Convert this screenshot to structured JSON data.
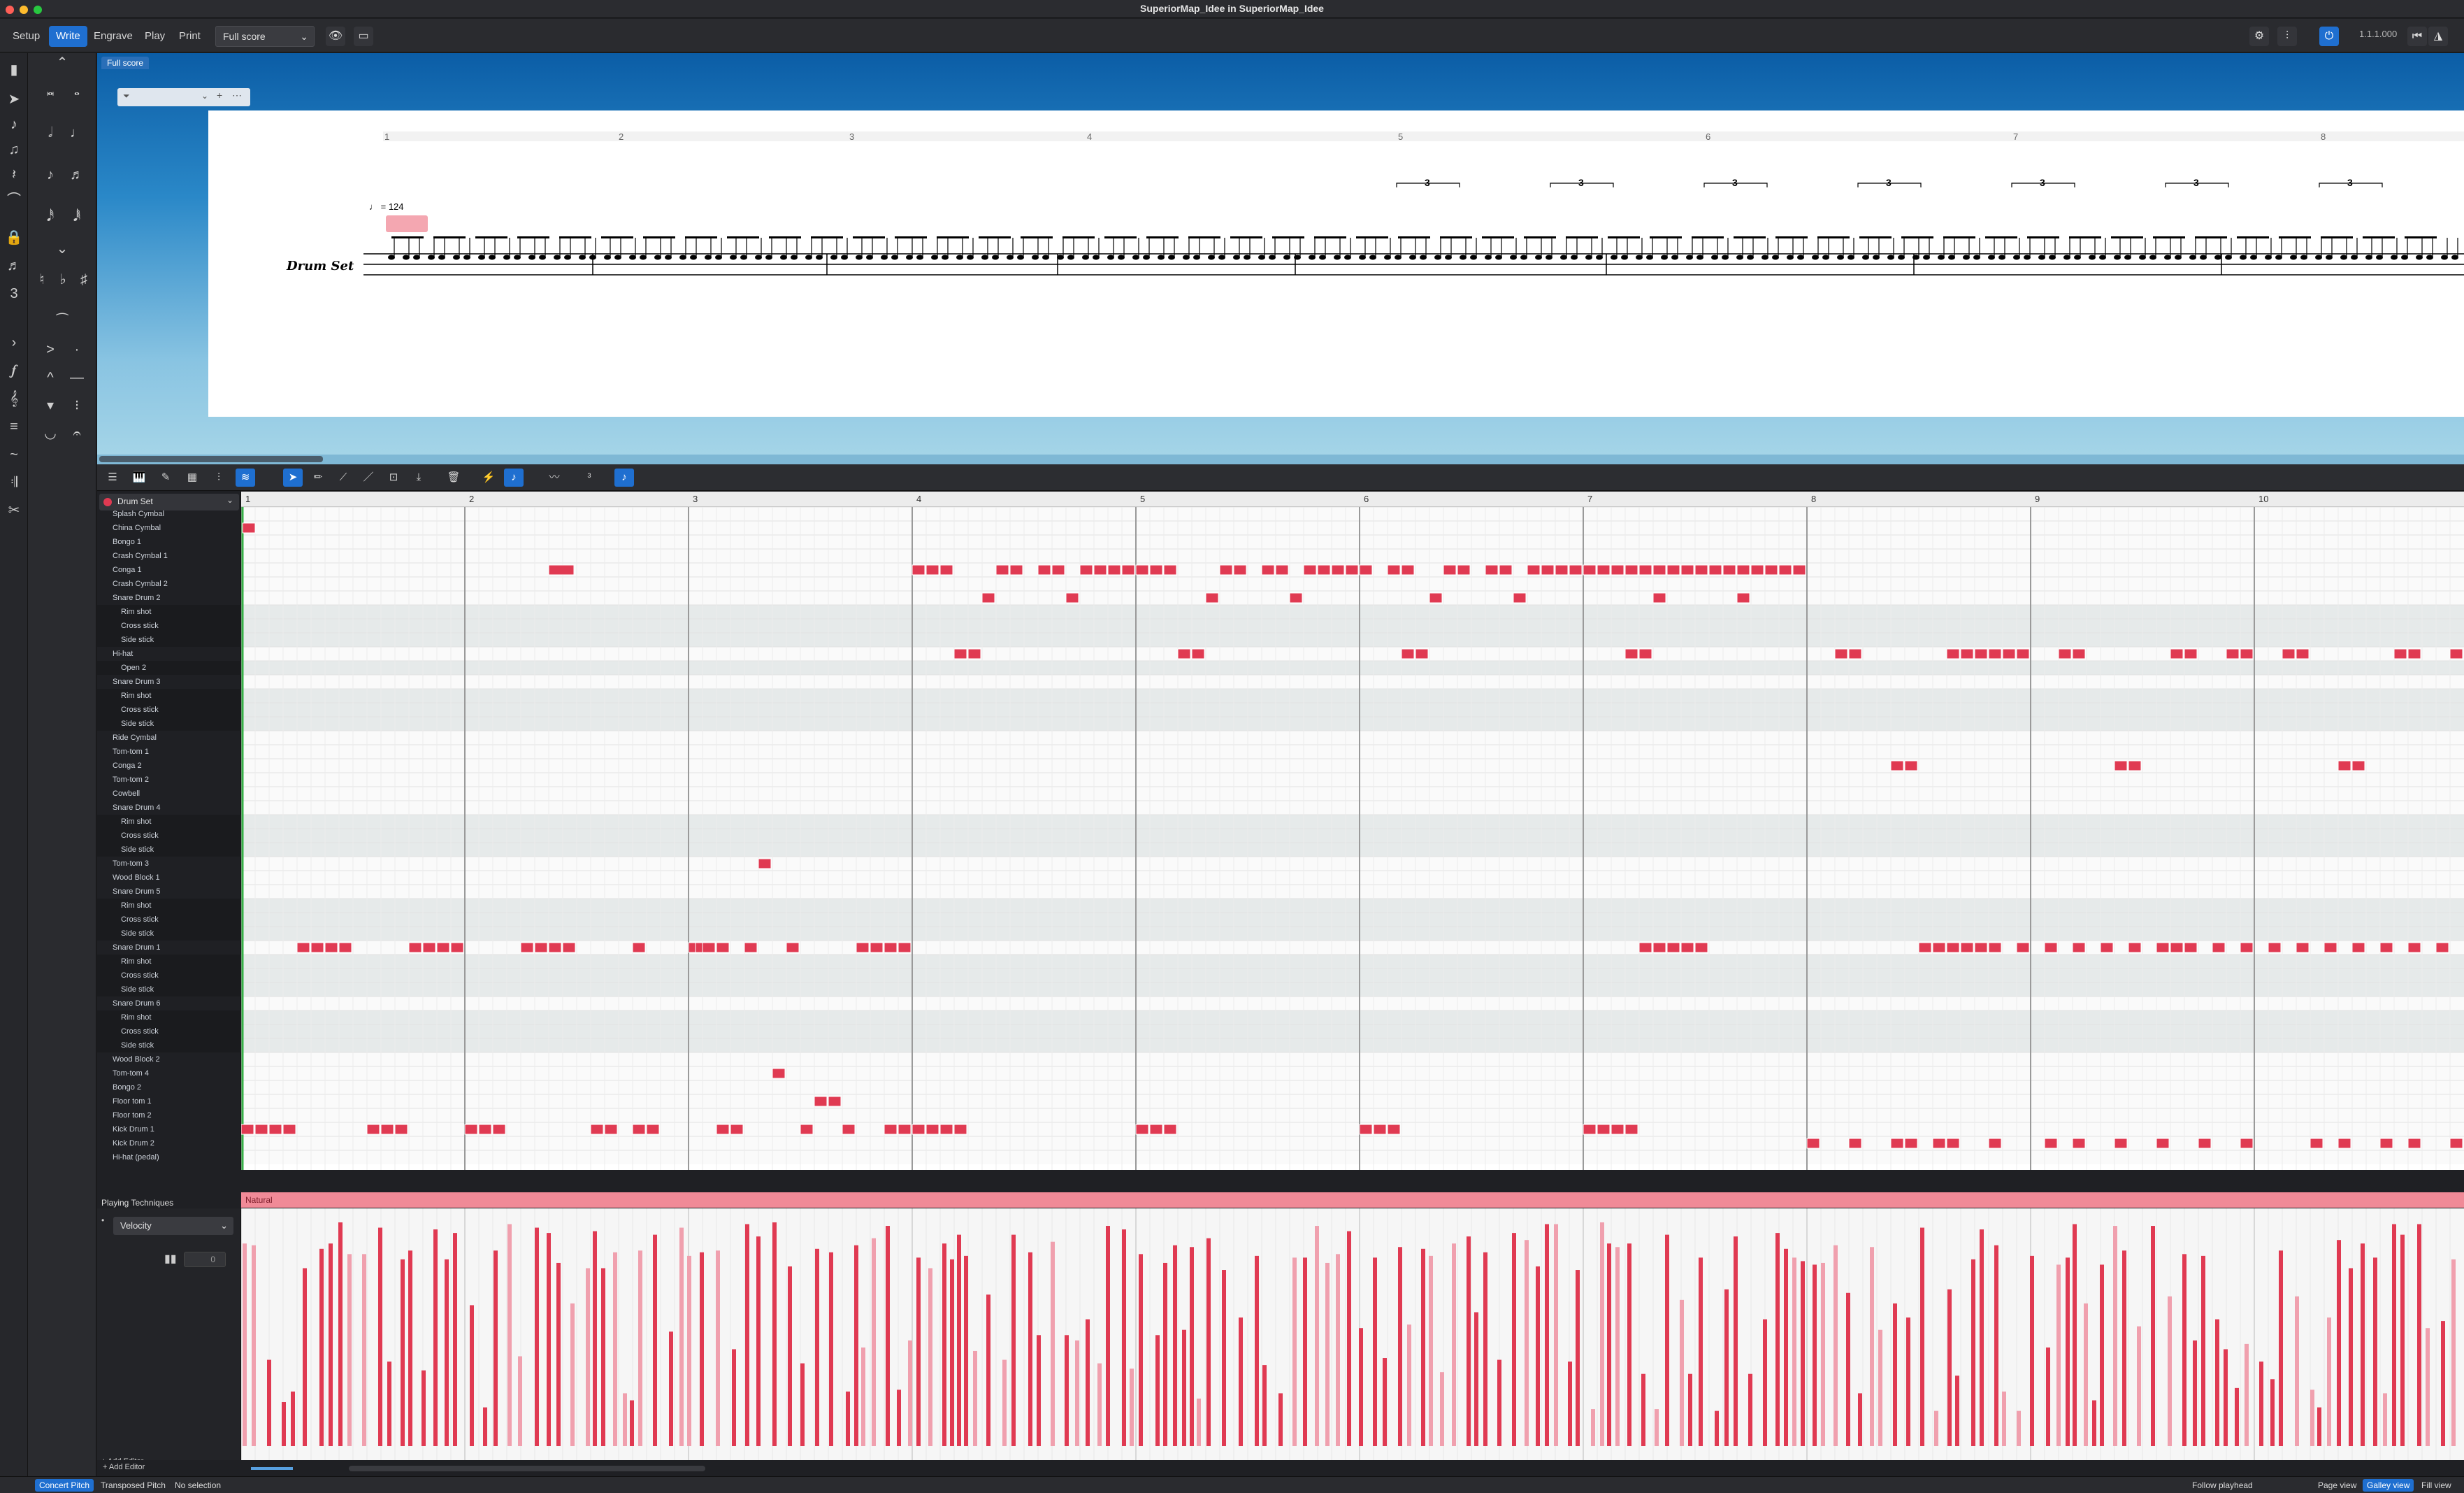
{
  "window": {
    "title": "SuperiorMap_Idee in SuperiorMap_Idee"
  },
  "modes": [
    "Setup",
    "Write",
    "Engrave",
    "Play",
    "Print"
  ],
  "active_mode": "Write",
  "layout": {
    "selected": "Full score"
  },
  "timecode": "1.1.1.000",
  "score": {
    "tab": "Full score",
    "instrument_label": "Drum Set",
    "tempo": "♩ = 124",
    "bar_numbers": [
      "1",
      "2",
      "3",
      "4",
      "5",
      "6",
      "7",
      "8"
    ],
    "tuplet": "3"
  },
  "key_editor": {
    "instrument": "Drum Set",
    "bar_numbers": [
      "1",
      "2",
      "3",
      "4",
      "5",
      "6",
      "7",
      "8",
      "9",
      "10"
    ],
    "rows": [
      "Splash Cymbal",
      "China Cymbal",
      "Bongo 1",
      "Crash Cymbal 1",
      "Conga 1",
      "Crash Cymbal 2",
      "Snare Drum 2",
      "Rim shot",
      "Cross stick",
      "Side stick",
      "Hi-hat",
      "Open 2",
      "Snare Drum 3",
      "Rim shot",
      "Cross stick",
      "Side stick",
      "Ride Cymbal",
      "Tom-tom 1",
      "Conga 2",
      "Tom-tom 2",
      "Cowbell",
      "Snare Drum 4",
      "Rim shot",
      "Cross stick",
      "Side stick",
      "Tom-tom 3",
      "Wood Block 1",
      "Snare Drum 5",
      "Rim shot",
      "Cross stick",
      "Side stick",
      "Snare Drum 1",
      "Rim shot",
      "Cross stick",
      "Side stick",
      "Snare Drum 6",
      "Rim shot",
      "Cross stick",
      "Side stick",
      "Wood Block 2",
      "Tom-tom 4",
      "Bongo 2",
      "Floor tom 1",
      "Floor tom 2",
      "Kick Drum 1",
      "Kick Drum 2",
      "Hi-hat (pedal)"
    ],
    "playing_techniques_label": "Playing Techniques",
    "technique": "Natural",
    "velocity_label": "Velocity",
    "velocity_value": "0",
    "add_editor": "+ Add Editor"
  },
  "status": {
    "concert_pitch": "Concert Pitch",
    "transposed_pitch": "Transposed Pitch",
    "selection": "No selection",
    "follow_playhead": "Follow playhead",
    "page_view": "Page view",
    "galley_view": "Galley view",
    "fill_view": "Fill view"
  },
  "colors": {
    "note": "#e03a52",
    "accent": "#1f6fd0"
  }
}
